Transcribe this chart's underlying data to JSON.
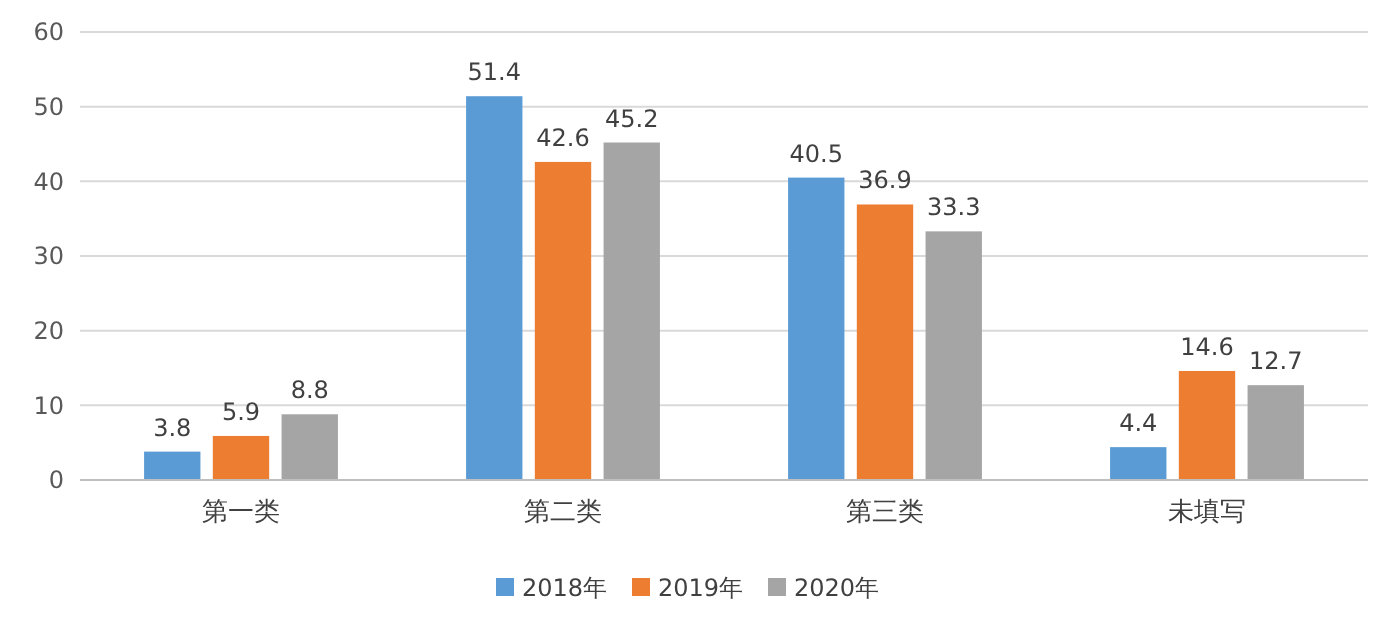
{
  "chart_data": {
    "type": "bar",
    "categories": [
      "第一类",
      "第二类",
      "第三类",
      "未填写"
    ],
    "series": [
      {
        "name": "2018年",
        "color": "#5b9bd5",
        "values": [
          3.8,
          51.4,
          40.5,
          4.4
        ]
      },
      {
        "name": "2019年",
        "color": "#ed7d31",
        "values": [
          5.9,
          42.6,
          36.9,
          14.6
        ]
      },
      {
        "name": "2020年",
        "color": "#a5a5a5",
        "values": [
          8.8,
          45.2,
          33.3,
          12.7
        ]
      }
    ],
    "ylim": [
      0,
      60
    ],
    "yticks": [
      0,
      10,
      20,
      30,
      40,
      50,
      60
    ],
    "grid": "y",
    "legend": "bottom",
    "data_labels": true
  }
}
